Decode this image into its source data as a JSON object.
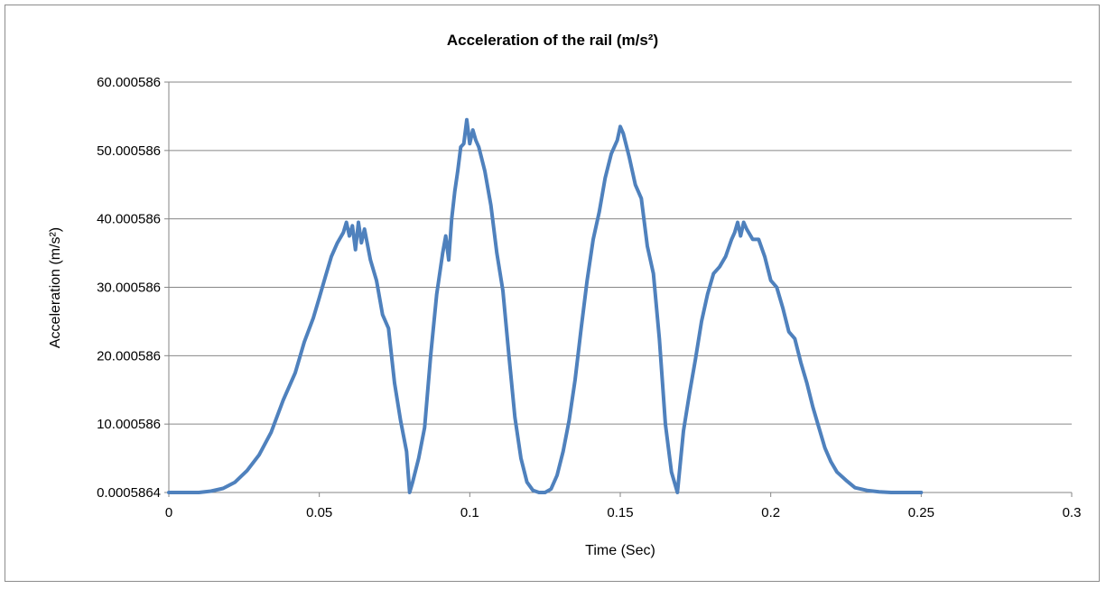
{
  "chart_data": {
    "type": "line",
    "title": "Acceleration of the rail (m/s²)",
    "xlabel": "Time (Sec)",
    "ylabel": "Acceleration (m/s²)",
    "xlim": [
      0,
      0.3
    ],
    "ylim": [
      0.0005864,
      60.000586
    ],
    "x_ticks": [
      0,
      0.05,
      0.1,
      0.15,
      0.2,
      0.25,
      0.3
    ],
    "x_tick_labels": [
      "0",
      "0.05",
      "0.1",
      "0.15",
      "0.2",
      "0.25",
      "0.3"
    ],
    "y_ticks": [
      0.0005864,
      10.000586,
      20.000586,
      30.000586,
      40.000586,
      50.000586,
      60.000586
    ],
    "y_tick_labels": [
      "0.0005864",
      "10.000586",
      "20.000586",
      "30.000586",
      "40.000586",
      "50.000586",
      "60.000586"
    ],
    "grid": "horizontal",
    "legend": "none",
    "color": "#4f81bd",
    "series": [
      {
        "x": [
          0,
          0.005,
          0.01,
          0.014,
          0.018,
          0.022,
          0.026,
          0.03,
          0.034,
          0.038,
          0.042,
          0.045,
          0.048,
          0.05,
          0.052,
          0.054,
          0.056,
          0.058,
          0.059,
          0.06,
          0.061,
          0.062,
          0.063,
          0.064,
          0.065,
          0.067,
          0.069,
          0.071,
          0.073,
          0.075,
          0.077,
          0.079,
          0.08,
          0.081,
          0.083,
          0.085,
          0.087,
          0.089,
          0.091,
          0.092,
          0.093,
          0.094,
          0.095,
          0.096,
          0.097,
          0.098,
          0.099,
          0.1,
          0.101,
          0.102,
          0.103,
          0.105,
          0.107,
          0.109,
          0.111,
          0.113,
          0.115,
          0.117,
          0.119,
          0.121,
          0.123,
          0.125,
          0.127,
          0.129,
          0.131,
          0.133,
          0.135,
          0.137,
          0.139,
          0.141,
          0.143,
          0.145,
          0.147,
          0.149,
          0.15,
          0.151,
          0.153,
          0.155,
          0.157,
          0.159,
          0.161,
          0.163,
          0.165,
          0.167,
          0.169,
          0.171,
          0.173,
          0.175,
          0.177,
          0.179,
          0.181,
          0.183,
          0.185,
          0.187,
          0.188,
          0.189,
          0.19,
          0.191,
          0.192,
          0.194,
          0.196,
          0.198,
          0.2,
          0.202,
          0.204,
          0.206,
          0.208,
          0.21,
          0.212,
          0.214,
          0.216,
          0.218,
          0.22,
          0.222,
          0.225,
          0.228,
          0.232,
          0.236,
          0.24,
          0.245,
          0.25
        ],
        "y": [
          0,
          0,
          0,
          0.2,
          0.6,
          1.5,
          3.2,
          5.5,
          8.8,
          13.5,
          17.5,
          22,
          25.5,
          28.5,
          31.5,
          34.5,
          36.5,
          38,
          39.5,
          37.5,
          39,
          35.5,
          39.5,
          36.5,
          38.5,
          34,
          31,
          26,
          24,
          16,
          10.5,
          6,
          0,
          1.5,
          5,
          9.5,
          20,
          29,
          35,
          37.5,
          34,
          40,
          44,
          47,
          50.5,
          51,
          54.5,
          51,
          53,
          51.5,
          50.5,
          47,
          42,
          35,
          29.5,
          20,
          11,
          5,
          1.5,
          0.3,
          0,
          0,
          0.5,
          2.5,
          6,
          10.5,
          16.5,
          24,
          31,
          37,
          41,
          46,
          49.5,
          51.5,
          53.5,
          52.5,
          49,
          45,
          43,
          36,
          32,
          22.5,
          10,
          3,
          0,
          9,
          14.5,
          19.5,
          25,
          29,
          32,
          33,
          34.5,
          37,
          38,
          39.5,
          37.5,
          39.5,
          38.5,
          37,
          37,
          34.5,
          31,
          30,
          27,
          23.5,
          22.5,
          19,
          16,
          12.5,
          9.5,
          6.5,
          4.5,
          3,
          1.8,
          0.7,
          0.3,
          0.1,
          0,
          0,
          0
        ]
      }
    ]
  }
}
